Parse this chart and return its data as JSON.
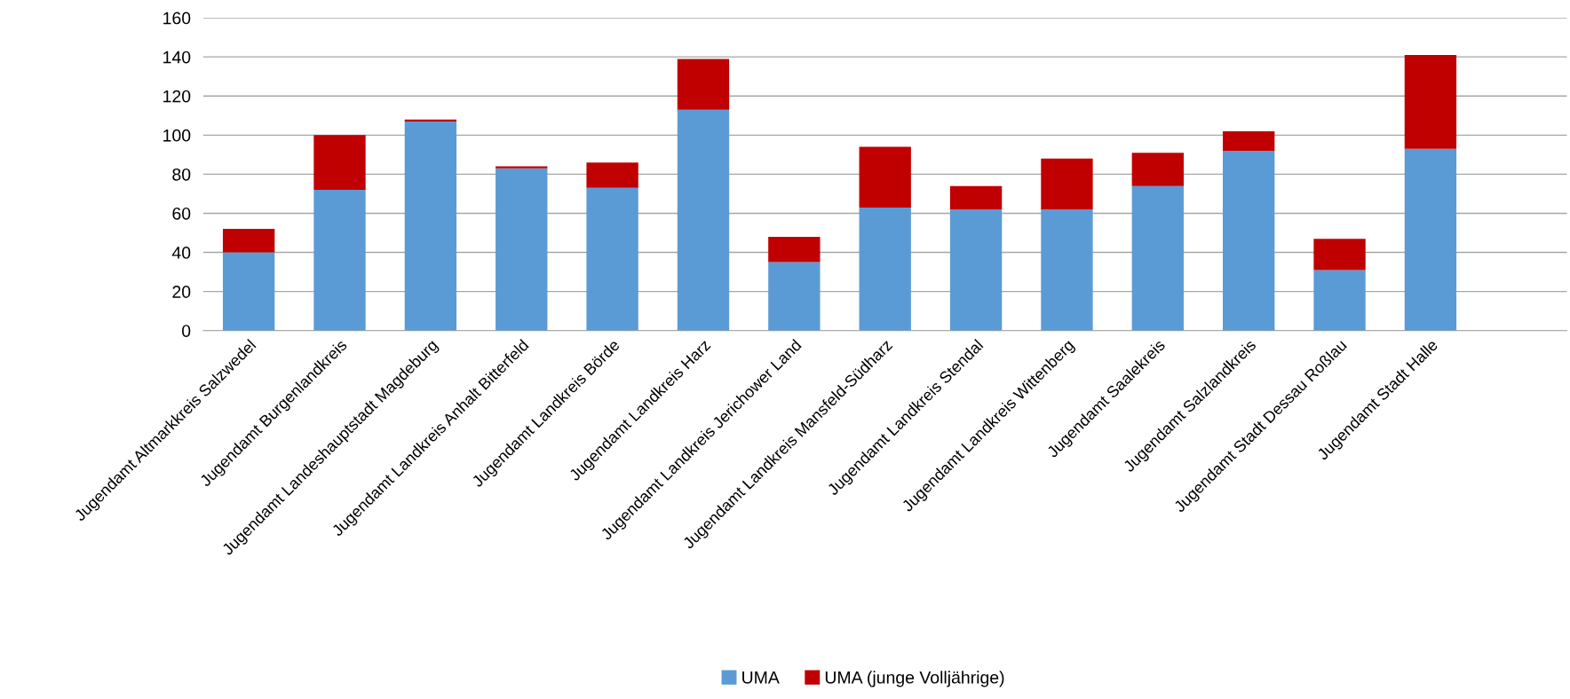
{
  "chart_data": {
    "type": "bar",
    "stacked": true,
    "categories": [
      "Jugendamt Altmarkkreis Salzwedel",
      "Jugendamt Burgenlandkreis",
      "Jugendamt Landeshauptstadt Magdeburg",
      "Jugendamt Landkreis Anhalt Bitterfeld",
      "Jugendamt Landkreis Börde",
      "Jugendamt Landkreis Harz",
      "Jugendamt Landkreis Jerichower Land",
      "Jugendamt Landkreis Mansfeld-Südharz",
      "Jugendamt Landkreis Stendal",
      "Jugendamt Landkreis Wittenberg",
      "Jugendamt Saalekreis",
      "Jugendamt Salzlandkreis",
      "Jugendamt Stadt Dessau Roßlau",
      "Jugendamt Stadt Halle",
      null
    ],
    "series": [
      {
        "name": "UMA",
        "color": "#5b9bd5",
        "values": [
          40,
          72,
          107,
          83,
          73,
          113,
          35,
          63,
          62,
          62,
          74,
          92,
          31,
          93,
          null
        ]
      },
      {
        "name": "UMA (junge Volljährige)",
        "color": "#c00000",
        "values": [
          12,
          28,
          1,
          1,
          13,
          26,
          13,
          31,
          12,
          26,
          17,
          10,
          16,
          48,
          null
        ]
      }
    ],
    "ylim": [
      0,
      160
    ],
    "yticks": [
      0,
      20,
      40,
      60,
      80,
      100,
      120,
      140,
      160
    ],
    "grid": "y",
    "legend": "bottom"
  }
}
